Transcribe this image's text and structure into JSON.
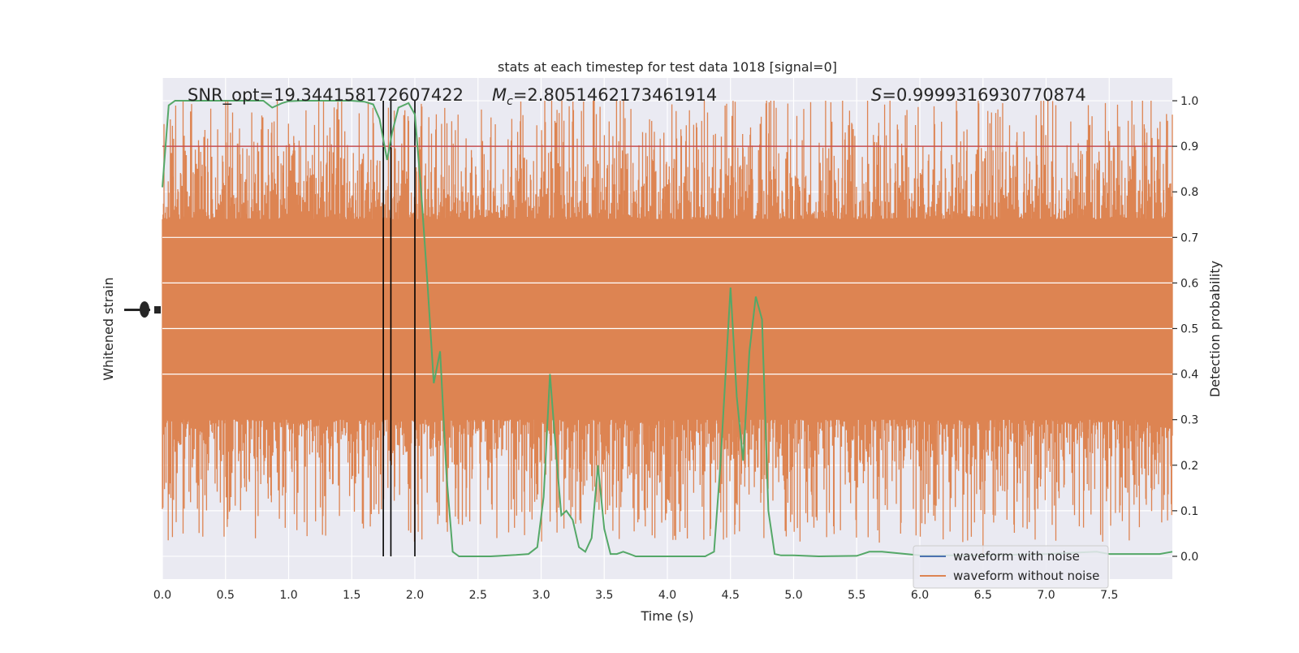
{
  "chart_data": {
    "type": "line",
    "title": "stats at each timestep for test data 1018 [signal=0]",
    "xlabel": "Time (s)",
    "ylabel_left": "Whitened strain",
    "ylabel_right": "Detection probability",
    "xlim": [
      0,
      8
    ],
    "ylim_right": [
      -0.05,
      1.05
    ],
    "x_ticks": [
      "0.0",
      "0.5",
      "1.0",
      "1.5",
      "2.0",
      "2.5",
      "3.0",
      "3.5",
      "4.0",
      "4.5",
      "5.0",
      "5.5",
      "6.0",
      "6.5",
      "7.0",
      "7.5"
    ],
    "y_ticks_right": [
      "0.0",
      "0.1",
      "0.2",
      "0.3",
      "0.4",
      "0.5",
      "0.6",
      "0.7",
      "0.8",
      "0.9",
      "1.0"
    ],
    "grid": true,
    "background": "#eaeaf2",
    "annotations": {
      "snr": "SNR_opt=19.344158172607422",
      "mc_symbol": "M",
      "mc_sub": "c",
      "mc_value": "=2.8051462173461914",
      "s_symbol": "S",
      "s_value": "=0.9999316930770874"
    },
    "threshold": {
      "y": 0.9,
      "color": "#c44e52"
    },
    "vertical_markers": [
      1.75,
      1.81,
      2.0
    ],
    "legend": {
      "placement": "lower-right",
      "entries": [
        {
          "label": "waveform with noise",
          "color": "#4c72b0"
        },
        {
          "label": "waveform without noise",
          "color": "#dd8452"
        }
      ]
    },
    "strain_band": {
      "color": "#dd8452",
      "dense_low": 0.3,
      "dense_high": 0.74,
      "peak_high": 1.0,
      "peak_low": 0.0
    },
    "series": [
      {
        "color": "#55a868",
        "x": [
          0.0,
          0.05,
          0.1,
          0.2,
          0.4,
          0.6,
          0.8,
          0.87,
          0.95,
          1.0,
          1.1,
          1.2,
          1.3,
          1.4,
          1.5,
          1.6,
          1.67,
          1.72,
          1.78,
          1.82,
          1.87,
          1.95,
          2.0,
          2.05,
          2.1,
          2.15,
          2.2,
          2.25,
          2.3,
          2.35,
          2.4,
          2.6,
          2.8,
          2.9,
          2.97,
          3.02,
          3.07,
          3.12,
          3.16,
          3.2,
          3.25,
          3.3,
          3.35,
          3.4,
          3.45,
          3.5,
          3.55,
          3.6,
          3.65,
          3.7,
          3.75,
          3.8,
          3.85,
          3.9,
          4.0,
          4.2,
          4.3,
          4.37,
          4.42,
          4.5,
          4.55,
          4.6,
          4.65,
          4.7,
          4.75,
          4.8,
          4.85,
          4.9,
          4.95,
          5.0,
          5.2,
          5.5,
          5.6,
          5.7,
          6.0,
          6.5,
          7.0,
          7.4,
          7.5,
          7.9,
          8.0
        ],
        "y": [
          0.81,
          0.99,
          1.0,
          1.0,
          1.0,
          1.0,
          1.0,
          0.985,
          0.995,
          0.999,
          1.0,
          1.0,
          1.0,
          1.0,
          1.0,
          0.998,
          0.992,
          0.96,
          0.87,
          0.93,
          0.985,
          0.995,
          0.97,
          0.8,
          0.6,
          0.38,
          0.45,
          0.18,
          0.01,
          0.0,
          0.0,
          0.0,
          0.003,
          0.005,
          0.02,
          0.13,
          0.4,
          0.22,
          0.09,
          0.1,
          0.08,
          0.02,
          0.01,
          0.04,
          0.2,
          0.06,
          0.005,
          0.005,
          0.01,
          0.005,
          0.0,
          0.0,
          0.0,
          0.0,
          0.0,
          0.0,
          0.0,
          0.01,
          0.2,
          0.59,
          0.35,
          0.21,
          0.45,
          0.57,
          0.52,
          0.1,
          0.005,
          0.002,
          0.002,
          0.002,
          0.0,
          0.001,
          0.01,
          0.01,
          0.002,
          0.002,
          0.005,
          0.01,
          0.005,
          0.005,
          0.01
        ]
      }
    ]
  }
}
